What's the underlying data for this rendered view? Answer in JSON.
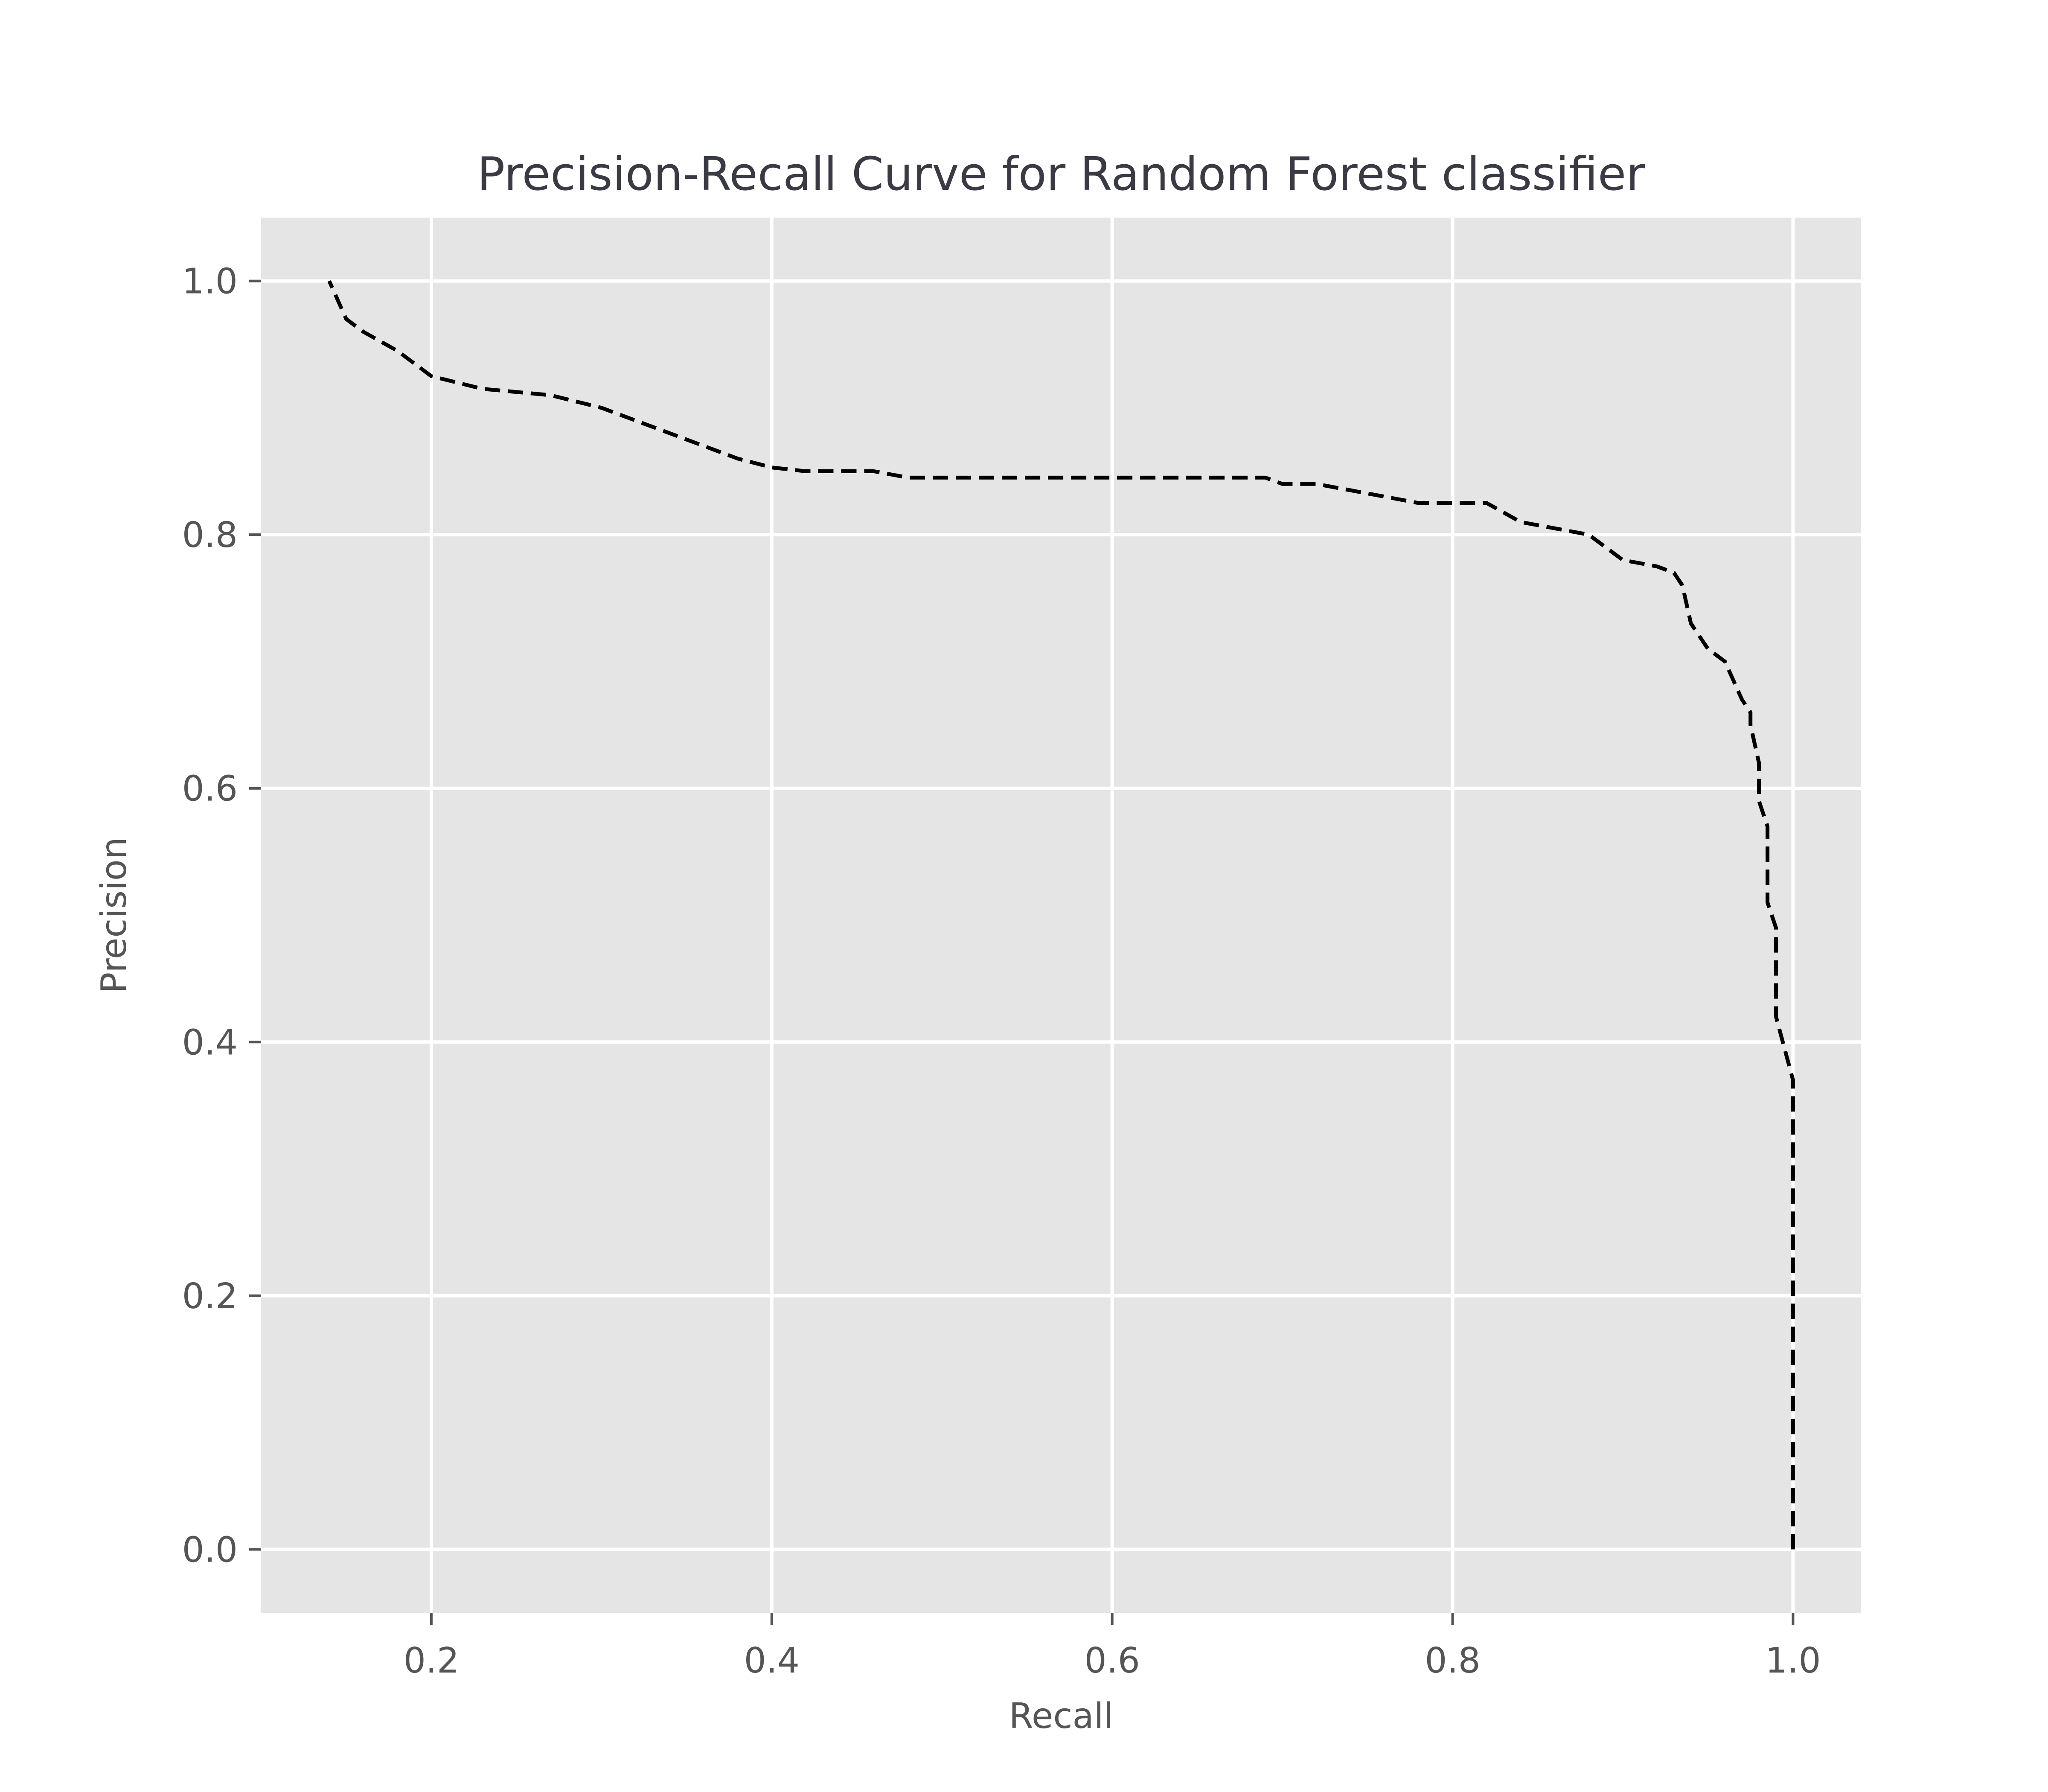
{
  "chart_data": {
    "type": "line",
    "title": "Precision-Recall Curve for Random Forest classifier",
    "xlabel": "Recall",
    "ylabel": "Precision",
    "xlim": [
      0.1,
      1.04
    ],
    "ylim": [
      -0.05,
      1.05
    ],
    "xticks": [
      "0.2",
      "0.4",
      "0.6",
      "0.8",
      "1.0"
    ],
    "yticks": [
      "0.0",
      "0.2",
      "0.4",
      "0.6",
      "0.8",
      "1.0"
    ],
    "grid": true,
    "legend": "none",
    "colors": {
      "plot_background": "#e5e5e5",
      "grid": "#ffffff",
      "line": "#000000",
      "text": "#555555"
    },
    "series": [
      {
        "x": [
          1.0,
          1.0,
          0.99,
          0.99,
          0.985,
          0.985,
          0.98,
          0.98,
          0.975,
          0.975,
          0.97,
          0.96,
          0.95,
          0.945,
          0.94,
          0.935,
          0.93,
          0.92,
          0.9,
          0.89,
          0.88,
          0.86,
          0.84,
          0.82,
          0.81,
          0.78,
          0.76,
          0.74,
          0.72,
          0.7,
          0.69,
          0.6,
          0.5,
          0.48,
          0.46,
          0.42,
          0.4,
          0.38,
          0.36,
          0.33,
          0.3,
          0.27,
          0.23,
          0.2,
          0.18,
          0.16,
          0.15,
          0.14
        ],
        "y": [
          0.0,
          0.37,
          0.42,
          0.49,
          0.51,
          0.57,
          0.59,
          0.62,
          0.65,
          0.66,
          0.67,
          0.7,
          0.71,
          0.72,
          0.73,
          0.76,
          0.77,
          0.775,
          0.78,
          0.79,
          0.8,
          0.805,
          0.81,
          0.825,
          0.825,
          0.825,
          0.83,
          0.835,
          0.84,
          0.84,
          0.845,
          0.845,
          0.845,
          0.845,
          0.85,
          0.85,
          0.853,
          0.86,
          0.87,
          0.885,
          0.9,
          0.91,
          0.915,
          0.925,
          0.945,
          0.96,
          0.97,
          1.0
        ]
      }
    ]
  }
}
